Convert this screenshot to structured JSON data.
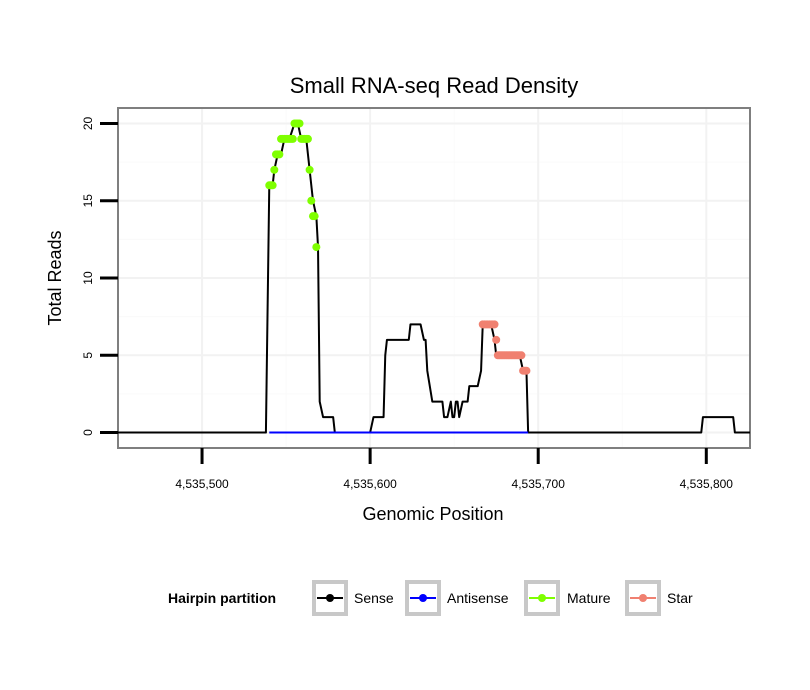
{
  "chart_data": {
    "type": "line",
    "title": "Small RNA-seq Read Density",
    "xlabel": "Genomic Position",
    "ylabel": "Total Reads",
    "xlim": [
      4535450,
      4535826
    ],
    "ylim": [
      -1,
      21
    ],
    "x_ticks": [
      4535500,
      4535600,
      4535700,
      4535800
    ],
    "x_tick_labels": [
      "4,535,500",
      "4,535,600",
      "4,535,700",
      "4,535,800"
    ],
    "y_ticks": [
      0,
      5,
      10,
      15,
      20
    ],
    "y_tick_labels": [
      "0",
      "5",
      "10",
      "15",
      "20"
    ],
    "grid": true,
    "legend": {
      "title": "Hairpin partition",
      "position": "bottom",
      "entries": [
        {
          "label": "Sense",
          "color": "#000000"
        },
        {
          "label": "Antisense",
          "color": "#0000ff"
        },
        {
          "label": "Mature",
          "color": "#7fff00"
        },
        {
          "label": "Star",
          "color": "#f08070"
        }
      ]
    },
    "series": [
      {
        "name": "Sense",
        "color": "#000000",
        "style": "line",
        "x": [
          4535450,
          4535538,
          4535540,
          4535542,
          4535543,
          4535545,
          4535547,
          4535549,
          4535552,
          4535555,
          4535557,
          4535559,
          4535562,
          4535564,
          4535566,
          4535568,
          4535569,
          4535570,
          4535572,
          4535575,
          4535578,
          4535579,
          4535580,
          4535600,
          4535602,
          4535603,
          4535608,
          4535609,
          4535610,
          4535620,
          4535623,
          4535624,
          4535630,
          4535632,
          4535633,
          4535634,
          4535637,
          4535643,
          4535644,
          4535646,
          4535648,
          4535649,
          4535650,
          4535651,
          4535652,
          4535653,
          4535655,
          4535658,
          4535659,
          4535664,
          4535666,
          4535667,
          4535668,
          4535672,
          4535674,
          4535675,
          4535685,
          4535689,
          4535691,
          4535692,
          4535693,
          4535694,
          4535695,
          4535780,
          4535797,
          4535798,
          4535816,
          4535817,
          4535826
        ],
        "y": [
          0,
          0,
          16,
          16,
          17,
          18,
          18,
          19,
          19,
          20,
          20,
          19,
          19,
          17,
          15,
          14,
          12,
          2,
          1,
          1,
          1,
          0,
          0,
          0,
          1,
          1,
          1,
          5,
          6,
          6,
          6,
          7,
          7,
          6,
          6,
          4,
          2,
          2,
          1,
          1,
          2,
          1,
          1,
          2,
          2,
          1,
          2,
          2,
          3,
          3,
          4,
          7,
          7,
          7,
          6,
          5,
          5,
          5,
          4,
          4,
          4,
          0,
          0,
          0,
          0,
          1,
          1,
          0,
          0
        ]
      },
      {
        "name": "Antisense",
        "color": "#0000ff",
        "style": "line",
        "x": [
          4535540,
          4535694
        ],
        "y": [
          0,
          0
        ]
      },
      {
        "name": "Mature",
        "color": "#7fff00",
        "style": "points",
        "x": [
          4535540,
          4535541,
          4535542,
          4535543,
          4535544,
          4535545,
          4535546,
          4535547,
          4535548,
          4535549,
          4535550,
          4535551,
          4535552,
          4535553,
          4535554,
          4535555,
          4535556,
          4535557,
          4535558,
          4535559,
          4535560,
          4535561,
          4535562,
          4535563,
          4535564,
          4535565,
          4535566,
          4535567,
          4535568
        ],
        "y": [
          16,
          16,
          16,
          17,
          18,
          18,
          18,
          19,
          19,
          19,
          19,
          19,
          19,
          19,
          19,
          20,
          20,
          20,
          20,
          19,
          19,
          19,
          19,
          19,
          17,
          15,
          14,
          14,
          12
        ]
      },
      {
        "name": "Star",
        "color": "#f08070",
        "style": "points",
        "x": [
          4535667,
          4535668,
          4535669,
          4535670,
          4535671,
          4535672,
          4535673,
          4535674,
          4535675,
          4535676,
          4535677,
          4535678,
          4535679,
          4535680,
          4535681,
          4535682,
          4535683,
          4535684,
          4535685,
          4535686,
          4535687,
          4535688,
          4535689,
          4535690,
          4535691,
          4535692,
          4535693
        ],
        "y": [
          7,
          7,
          7,
          7,
          7,
          7,
          7,
          7,
          6,
          5,
          5,
          5,
          5,
          5,
          5,
          5,
          5,
          5,
          5,
          5,
          5,
          5,
          5,
          5,
          4,
          4,
          4
        ]
      }
    ]
  }
}
